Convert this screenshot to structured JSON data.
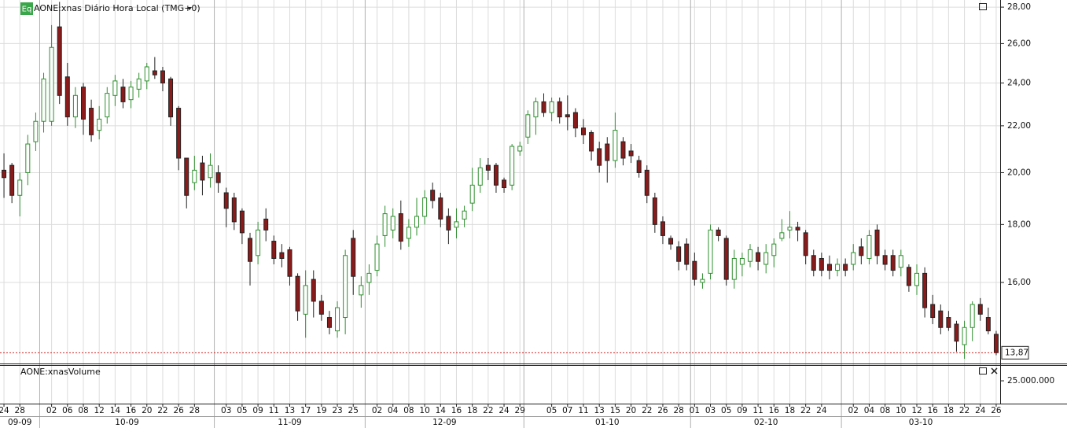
{
  "chart_data": {
    "type": "candlestick",
    "badge": "Eq",
    "title": "AONE:xnas Diário Hora Local (TMG+0)",
    "log_scale": true,
    "grid": true,
    "up_color": "#2f8f2f",
    "down_color": "#8b1a1a",
    "last_color": "#d42020",
    "categories": [
      "24",
      null,
      "28",
      null,
      null,
      null,
      "02",
      null,
      "06",
      null,
      "08",
      null,
      "12",
      null,
      "14",
      null,
      "16",
      null,
      "20",
      null,
      "22",
      null,
      "26",
      null,
      "28",
      null,
      null,
      null,
      "03",
      null,
      "05",
      null,
      "09",
      null,
      "11",
      null,
      "13",
      null,
      "17",
      null,
      "19",
      null,
      "23",
      null,
      "25",
      null,
      null,
      "02",
      null,
      "04",
      null,
      "08",
      null,
      "10",
      null,
      "14",
      null,
      "16",
      null,
      "18",
      null,
      "22",
      null,
      "24",
      null,
      "29",
      null,
      null,
      null,
      "05",
      null,
      "07",
      null,
      "11",
      null,
      "13",
      null,
      "15",
      null,
      "20",
      null,
      "22",
      null,
      "26",
      null,
      "28",
      null,
      "01",
      null,
      "03",
      null,
      "05",
      null,
      "09",
      null,
      "11",
      null,
      "16",
      null,
      "18",
      null,
      "22",
      null,
      "24",
      null,
      null,
      null,
      "02",
      null,
      "04",
      null,
      "08",
      null,
      "10",
      null,
      "12",
      null,
      "16",
      null,
      "18",
      null,
      "22",
      null,
      "24",
      null,
      "26"
    ],
    "months": [
      "09-09",
      "10-09",
      "11-09",
      "12-09",
      "01-10",
      "02-10",
      "03-10"
    ],
    "open": [
      20.1,
      20.3,
      19.1,
      20.0,
      21.3,
      22.2,
      22.2,
      26.9,
      24.3,
      22.4,
      23.8,
      22.8,
      21.8,
      22.4,
      23.4,
      23.8,
      23.2,
      23.7,
      24.1,
      24.6,
      24.6,
      24.2,
      22.8,
      20.6,
      19.6,
      20.4,
      19.8,
      20.0,
      19.2,
      19.0,
      18.5,
      17.5,
      16.9,
      18.2,
      17.4,
      17.0,
      17.1,
      16.2,
      15.0,
      16.1,
      15.4,
      14.9,
      14.5,
      14.9,
      17.5,
      15.6,
      16.0,
      16.4,
      17.6,
      17.8,
      18.4,
      17.5,
      17.9,
      18.3,
      19.3,
      19.0,
      18.3,
      17.9,
      18.2,
      18.8,
      19.5,
      20.3,
      20.3,
      19.7,
      19.5,
      20.9,
      21.5,
      22.4,
      23.1,
      22.6,
      23.1,
      22.5,
      22.6,
      21.9,
      21.7,
      21.0,
      21.2,
      20.5,
      21.3,
      20.9,
      20.5,
      20.1,
      19.0,
      18.1,
      17.5,
      17.2,
      17.3,
      16.7,
      16.0,
      16.3,
      17.8,
      17.5,
      16.1,
      16.6,
      16.7,
      17.0,
      16.6,
      16.9,
      17.5,
      17.8,
      17.9,
      17.7,
      16.9,
      16.8,
      16.6,
      16.4,
      16.6,
      16.6,
      17.2,
      16.8,
      17.8,
      16.9,
      16.9,
      16.5,
      16.5,
      15.9,
      16.3,
      15.3,
      15.1,
      14.9,
      14.7,
      14.1,
      14.6,
      15.3,
      14.9,
      14.4
    ],
    "high": [
      20.8,
      20.4,
      20.0,
      21.6,
      22.6,
      24.5,
      27.0,
      28.3,
      25.0,
      23.8,
      24.0,
      23.2,
      22.9,
      23.8,
      24.4,
      24.2,
      24.1,
      24.5,
      25.0,
      25.3,
      24.8,
      24.3,
      22.9,
      20.6,
      20.7,
      20.7,
      20.8,
      20.3,
      19.4,
      19.2,
      18.6,
      17.7,
      18.1,
      18.6,
      17.6,
      17.3,
      17.2,
      16.3,
      16.4,
      16.4,
      15.6,
      15.1,
      15.4,
      17.1,
      17.8,
      16.2,
      16.6,
      17.6,
      18.7,
      18.6,
      18.9,
      18.2,
      19.0,
      19.3,
      19.6,
      19.2,
      18.6,
      18.6,
      18.7,
      20.2,
      20.6,
      20.6,
      20.4,
      19.8,
      21.2,
      21.3,
      22.7,
      23.3,
      23.5,
      23.3,
      23.3,
      23.4,
      22.8,
      22.3,
      21.8,
      21.3,
      21.5,
      22.6,
      21.5,
      21.2,
      20.7,
      20.3,
      19.2,
      18.3,
      17.6,
      17.4,
      17.5,
      17.0,
      16.3,
      18.0,
      17.9,
      17.6,
      17.1,
      17.0,
      17.3,
      17.2,
      17.3,
      17.5,
      18.2,
      18.5,
      18.1,
      17.8,
      17.1,
      17.0,
      16.9,
      16.8,
      16.8,
      17.3,
      17.5,
      17.8,
      18.0,
      17.1,
      17.1,
      17.1,
      16.6,
      16.6,
      16.5,
      15.6,
      15.3,
      15.1,
      14.8,
      14.8,
      15.4,
      15.5,
      15.2,
      14.5
    ],
    "low": [
      19.0,
      18.8,
      18.3,
      19.5,
      20.9,
      21.7,
      22.0,
      23.0,
      22.0,
      21.9,
      21.6,
      21.3,
      21.4,
      22.1,
      22.9,
      22.8,
      22.8,
      23.3,
      23.7,
      24.2,
      23.6,
      22.0,
      20.1,
      18.6,
      19.3,
      19.1,
      19.4,
      19.2,
      17.9,
      17.8,
      17.3,
      15.9,
      16.6,
      17.4,
      16.6,
      16.5,
      15.9,
      14.8,
      14.3,
      14.9,
      14.8,
      14.4,
      14.3,
      14.4,
      15.6,
      15.2,
      15.6,
      16.2,
      17.2,
      17.5,
      17.1,
      17.2,
      17.6,
      18.0,
      18.6,
      17.9,
      17.3,
      17.5,
      17.9,
      18.5,
      19.2,
      19.7,
      19.2,
      19.2,
      19.3,
      20.7,
      21.2,
      21.6,
      22.4,
      22.2,
      22.1,
      21.8,
      21.5,
      21.2,
      20.5,
      20.0,
      19.6,
      20.2,
      20.3,
      20.4,
      19.8,
      18.8,
      17.7,
      17.3,
      17.1,
      16.4,
      16.4,
      15.9,
      15.8,
      16.1,
      17.4,
      15.9,
      15.8,
      16.2,
      16.5,
      16.4,
      16.3,
      16.5,
      17.4,
      17.5,
      17.4,
      16.6,
      16.2,
      16.2,
      16.1,
      16.2,
      16.2,
      16.4,
      16.6,
      16.6,
      16.6,
      16.4,
      16.2,
      16.2,
      15.7,
      15.6,
      14.9,
      14.7,
      14.4,
      14.5,
      13.9,
      13.7,
      14.2,
      14.8,
      14.4,
      13.8
    ],
    "close": [
      19.8,
      19.1,
      19.7,
      21.2,
      22.2,
      24.2,
      25.8,
      23.4,
      22.4,
      23.4,
      22.3,
      21.6,
      22.3,
      23.5,
      24.1,
      23.1,
      23.8,
      24.2,
      24.8,
      24.4,
      24.0,
      22.4,
      20.6,
      19.1,
      20.1,
      19.7,
      20.3,
      19.6,
      18.6,
      18.1,
      17.7,
      16.7,
      17.8,
      17.8,
      16.8,
      16.8,
      16.2,
      15.1,
      15.9,
      15.4,
      15.0,
      14.6,
      15.2,
      16.9,
      16.2,
      15.9,
      16.3,
      17.3,
      18.4,
      18.3,
      17.4,
      17.9,
      18.3,
      19.0,
      18.9,
      18.2,
      17.8,
      18.1,
      18.5,
      19.5,
      20.2,
      20.1,
      19.5,
      19.4,
      21.1,
      21.1,
      22.5,
      23.1,
      22.6,
      23.1,
      22.4,
      22.4,
      21.9,
      21.6,
      20.9,
      20.3,
      20.5,
      21.8,
      20.6,
      20.7,
      20.0,
      19.1,
      18.0,
      17.6,
      17.3,
      16.7,
      16.6,
      16.1,
      16.1,
      17.8,
      17.6,
      16.1,
      16.8,
      16.8,
      17.1,
      16.7,
      17.0,
      17.3,
      17.7,
      17.9,
      17.8,
      16.9,
      16.4,
      16.4,
      16.4,
      16.6,
      16.4,
      17.0,
      16.9,
      17.6,
      16.9,
      16.6,
      16.4,
      16.9,
      15.9,
      16.3,
      15.2,
      14.9,
      14.6,
      14.6,
      14.2,
      14.6,
      15.3,
      15.0,
      14.5,
      13.87
    ],
    "last_label": "13,87",
    "ylim": [
      13.57,
      28.41
    ],
    "yticks": [
      {
        "value": 16,
        "label": "16,00"
      },
      {
        "value": 18,
        "label": "18,00"
      },
      {
        "value": 20,
        "label": "20,00"
      },
      {
        "value": 22,
        "label": "22,00"
      },
      {
        "value": 24,
        "label": "24,00"
      },
      {
        "value": 26,
        "label": "26,00"
      },
      {
        "value": 28,
        "label": "28,00"
      }
    ],
    "volume": {
      "title": "AONE:xnasVolume",
      "ylim": [
        0,
        42000000
      ],
      "yticks": [
        {
          "value": 25000000,
          "label": "25.000.000"
        }
      ]
    }
  }
}
